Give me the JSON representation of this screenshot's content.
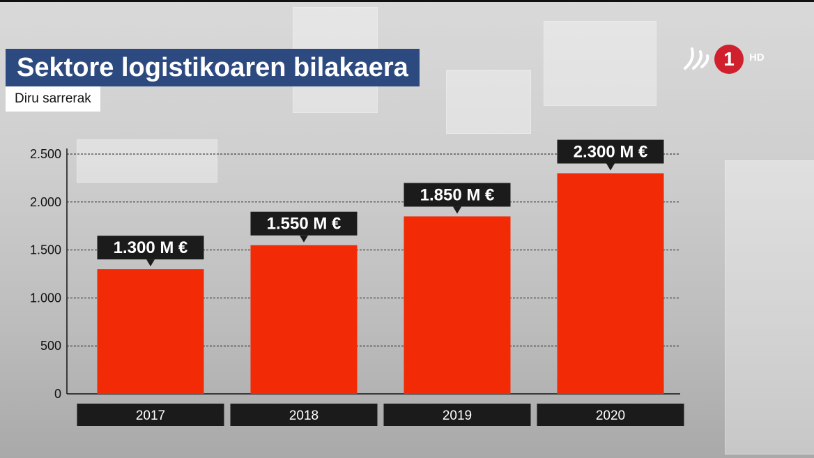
{
  "header": {
    "title": "Sektore logistikoaren bilakaera",
    "subtitle": "Diru sarrerak"
  },
  "logo": {
    "number": "1",
    "badge": "HD",
    "accent": "#d0202e"
  },
  "colors": {
    "bar": "#f22a06",
    "title_bg": "#2d4a80",
    "label_bg": "#1b1b1b"
  },
  "chart_data": {
    "type": "bar",
    "title": "Sektore logistikoaren bilakaera",
    "subtitle": "Diru sarrerak",
    "categories": [
      "2017",
      "2018",
      "2019",
      "2020"
    ],
    "values": [
      1300,
      1550,
      1850,
      2300
    ],
    "data_labels": [
      "1.300 M €",
      "1.550 M €",
      "1.850 M €",
      "2.300 M €"
    ],
    "yticks": [
      0,
      500,
      1000,
      1500,
      2000,
      2500
    ],
    "ytick_labels": [
      "0",
      "500",
      "1.000",
      "1.500",
      "2.000",
      "2.500"
    ],
    "ylim": [
      0,
      2500
    ],
    "grid": true,
    "xlabel": "",
    "ylabel": ""
  }
}
